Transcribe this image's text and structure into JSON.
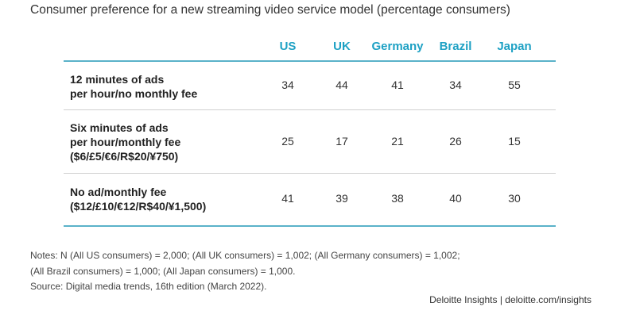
{
  "header": {
    "subtitle": "Consumer preference for a new streaming video service model (percentage consumers)"
  },
  "colors": {
    "accent": "#1ea1c4",
    "rule": "#5ab2c9",
    "divider": "#cfcfcf"
  },
  "chart_data": {
    "type": "table",
    "columns": [
      "US",
      "UK",
      "Germany",
      "Brazil",
      "Japan"
    ],
    "rows": [
      {
        "label_lines": [
          "12 minutes of ads",
          "per hour/no monthly fee"
        ],
        "values": [
          34,
          44,
          41,
          34,
          55
        ]
      },
      {
        "label_lines": [
          "Six minutes of ads",
          "per hour/monthly fee",
          "($6/£5/€6/R$20/¥750)"
        ],
        "values": [
          25,
          17,
          21,
          26,
          15
        ]
      },
      {
        "label_lines": [
          "No ad/monthly fee",
          "($12/£10/€12/R$40/¥1,500)"
        ],
        "values": [
          41,
          39,
          38,
          40,
          30
        ]
      }
    ]
  },
  "footer": {
    "notes": [
      "Notes: N (All US consumers) = 2,000; (All UK consumers) = 1,002; (All Germany consumers) = 1,002;",
      "(All Brazil consumers) = 1,000; (All Japan consumers) = 1,000.",
      "Source: Digital media trends, 16th edition (March 2022)."
    ],
    "credit": "Deloitte Insights | deloitte.com/insights"
  }
}
